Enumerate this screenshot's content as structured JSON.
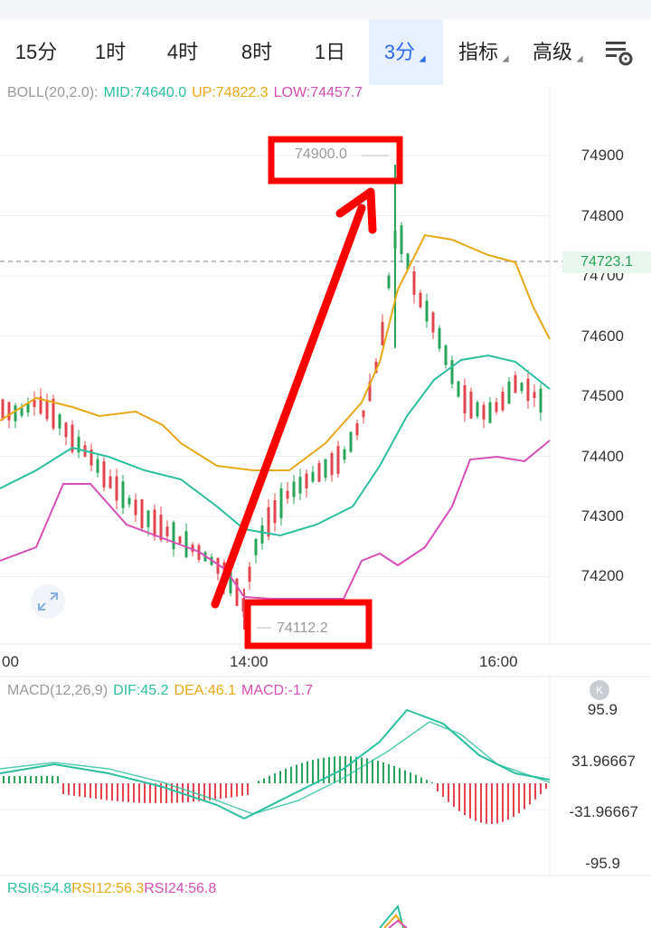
{
  "tabs": [
    {
      "label": "15分",
      "dropdown": false,
      "active": false
    },
    {
      "label": "1时",
      "dropdown": false,
      "active": false
    },
    {
      "label": "4时",
      "dropdown": false,
      "active": false
    },
    {
      "label": "8时",
      "dropdown": false,
      "active": false
    },
    {
      "label": "1日",
      "dropdown": false,
      "active": false
    },
    {
      "label": "3分",
      "dropdown": true,
      "active": true
    },
    {
      "label": "指标",
      "dropdown": true,
      "active": false
    },
    {
      "label": "高级",
      "dropdown": true,
      "active": false
    }
  ],
  "settings_icon": "chart-settings-gear-icon",
  "boll": {
    "name": "BOLL(20,2.0):",
    "mid": "MID:74640.0",
    "up": "UP:74822.3",
    "low": "LOW:74457.7",
    "colors": {
      "name": "#999999",
      "mid": "#2bbf9f",
      "up": "#e6a817",
      "low": "#d64fb4"
    }
  },
  "macd": {
    "name": "MACD(12,26,9)",
    "dif": "DIF:45.2",
    "dea": "DEA:46.1",
    "macd": "MACD:-1.7",
    "yticks": [
      "95.9",
      "31.96667",
      "-31.96667",
      "-95.9"
    ]
  },
  "rsi": {
    "rsi6": "RSI6:54.8",
    "rsi12": "RSI12:56.3",
    "rsi24": "RSI24:56.8"
  },
  "colors": {
    "up": "#27a45a",
    "down": "#e0454f",
    "accent": "#2f6bf0",
    "annotation": "#ff0000"
  },
  "chart_data": {
    "type": "candlestick",
    "interval": "3分",
    "y_ticks": [
      74900,
      74800,
      74700,
      74600,
      74500,
      74400,
      74300,
      74200
    ],
    "x_ticks": [
      "14:00",
      "16:00"
    ],
    "x_tick_left_partial": "00",
    "last_price": "74723.1",
    "high_annotation": "74900.0",
    "low_annotation": "74112.2",
    "indicators": [
      "BOLL(20,2.0)",
      "MACD(12,26,9)",
      "RSI(6,12,24)"
    ]
  }
}
